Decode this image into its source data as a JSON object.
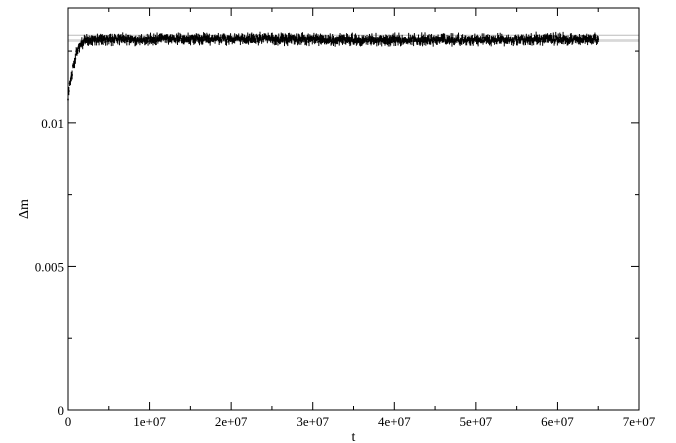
{
  "chart_data": {
    "type": "scatter",
    "xlabel": "t",
    "ylabel": "Δm",
    "xlim": [
      0,
      70000000
    ],
    "ylim": [
      0,
      0.014
    ],
    "xticks": [
      0,
      10000000,
      20000000,
      30000000,
      40000000,
      50000000,
      60000000,
      70000000
    ],
    "xtick_labels": [
      "0",
      "1e+07",
      "2e+07",
      "3e+07",
      "4e+07",
      "5e+07",
      "6e+07",
      "7e+07"
    ],
    "yticks": [
      0,
      0.005,
      0.01
    ],
    "ytick_labels": [
      "0",
      "0.005",
      "0.01"
    ],
    "grid": false,
    "error_bars": true,
    "reference_band": {
      "lower": 0.01285,
      "center": 0.0129,
      "upper": 0.01305,
      "color": "#bbbbbb"
    },
    "series": [
      {
        "color": "#000000",
        "approx_error": 0.00013,
        "x": [
          0,
          200000,
          400000,
          600000,
          800000,
          1000000,
          1250000,
          1500000,
          2000000,
          3000000,
          5000000,
          7500000,
          10000000,
          12500000,
          15000000,
          17500000,
          20000000,
          22500000,
          25000000,
          27500000,
          30000000,
          32500000,
          35000000,
          37500000,
          40000000,
          42500000,
          45000000,
          47500000,
          50000000,
          52500000,
          55000000,
          57500000,
          60000000,
          62500000,
          65000000
        ],
        "y": [
          0.0109,
          0.0113,
          0.0116,
          0.0119,
          0.0121,
          0.0124,
          0.0126,
          0.01275,
          0.01285,
          0.01288,
          0.0129,
          0.01291,
          0.0129,
          0.01292,
          0.01293,
          0.01291,
          0.0129,
          0.01292,
          0.01293,
          0.0129,
          0.01291,
          0.01289,
          0.0129,
          0.01289,
          0.01288,
          0.0129,
          0.01289,
          0.0129,
          0.0129,
          0.0129,
          0.01289,
          0.01291,
          0.01292,
          0.0129,
          0.0129
        ]
      }
    ]
  }
}
